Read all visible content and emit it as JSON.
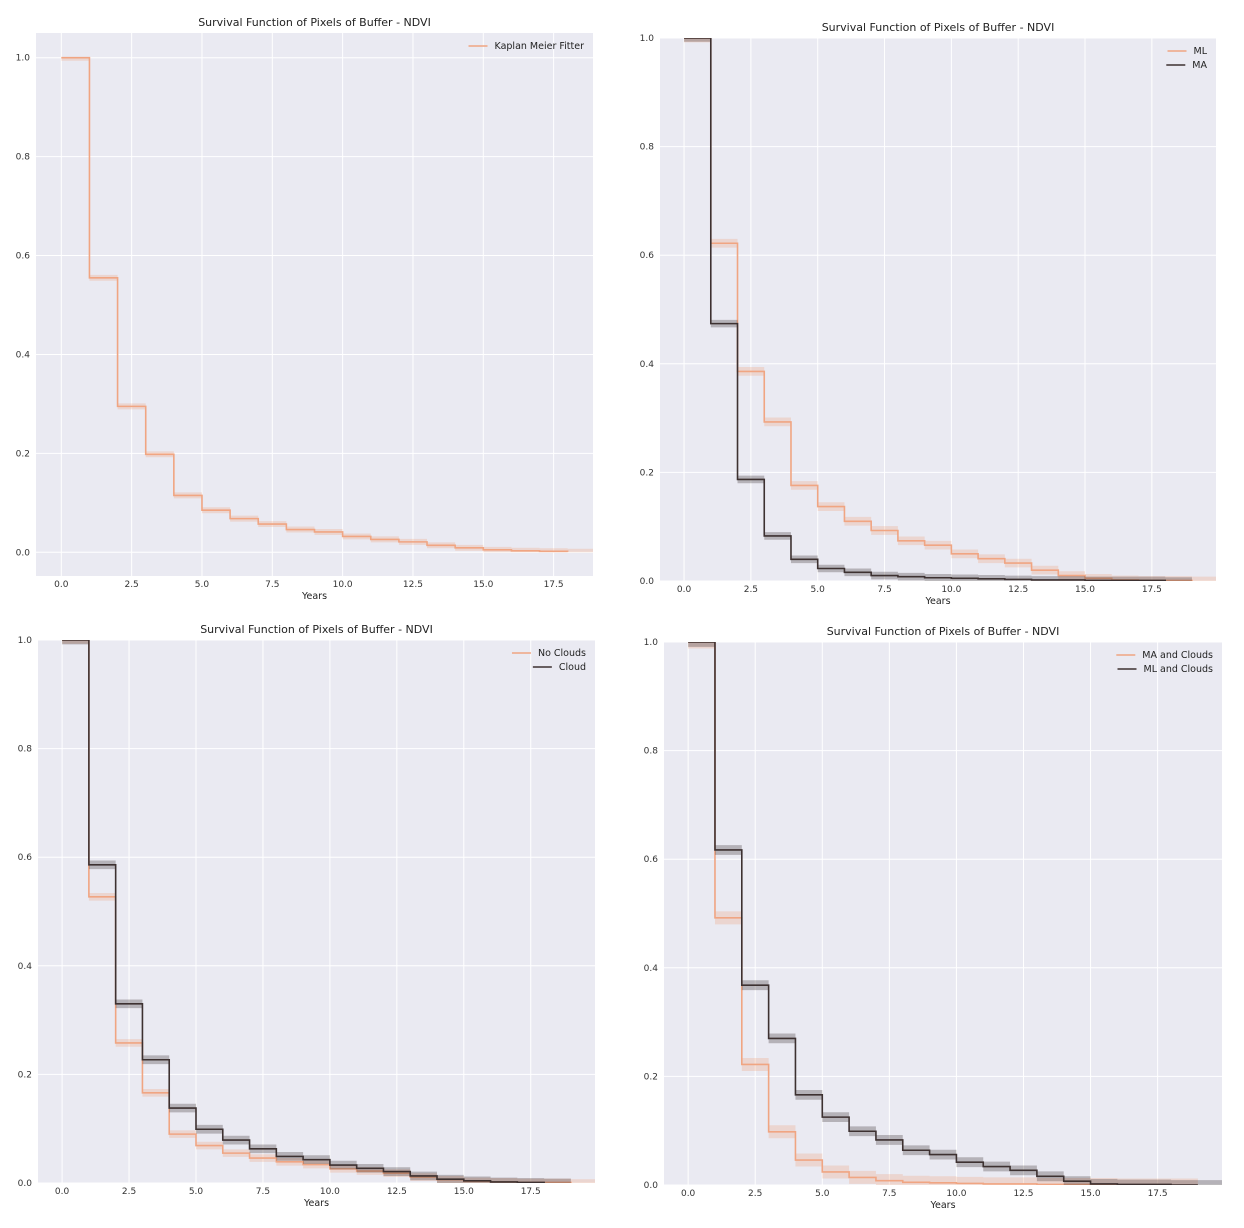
{
  "charts": [
    {
      "type": "line",
      "title": "Survival Function of Pixels of Buffer - NDVI",
      "xlabel": "Years",
      "ylabel": "",
      "xlim": [
        -0.9,
        18.9
      ],
      "ylim": [
        -0.048,
        1.05
      ],
      "xticks": [
        0.0,
        2.5,
        5.0,
        7.5,
        10.0,
        12.5,
        15.0,
        17.5
      ],
      "xtick_labels": [
        "0.0",
        "2.5",
        "5.0",
        "7.5",
        "10.0",
        "12.5",
        "15.0",
        "17.5"
      ],
      "yticks": [
        0.0,
        0.2,
        0.4,
        0.6,
        0.8,
        1.0
      ],
      "ytick_labels": [
        "0.0",
        "0.2",
        "0.4",
        "0.6",
        "0.8",
        "1.0"
      ],
      "grid": true,
      "legend_position": "top-right",
      "series": [
        {
          "name": "Kaplan Meier Fitter",
          "color": "#f0a582",
          "x": [
            0,
            1,
            2,
            3,
            4,
            5,
            6,
            7,
            8,
            9,
            10,
            11,
            12,
            13,
            14,
            15,
            16,
            17,
            18
          ],
          "y": [
            1.0,
            0.555,
            0.295,
            0.198,
            0.115,
            0.085,
            0.068,
            0.057,
            0.046,
            0.041,
            0.032,
            0.026,
            0.021,
            0.014,
            0.009,
            0.005,
            0.003,
            0.002,
            0.001
          ],
          "ci": 0.006
        }
      ]
    },
    {
      "type": "line",
      "title": "Survival Function of Pixels of Buffer - NDVI",
      "xlabel": "Years",
      "ylabel": "",
      "xlim": [
        -0.9,
        19.9
      ],
      "ylim": [
        0.0,
        1.0
      ],
      "xticks": [
        0.0,
        2.5,
        5.0,
        7.5,
        10.0,
        12.5,
        15.0,
        17.5
      ],
      "xtick_labels": [
        "0.0",
        "2.5",
        "5.0",
        "7.5",
        "10.0",
        "12.5",
        "15.0",
        "17.5"
      ],
      "yticks": [
        0.0,
        0.2,
        0.4,
        0.6,
        0.8,
        1.0
      ],
      "ytick_labels": [
        "0.0",
        "0.2",
        "0.4",
        "0.6",
        "0.8",
        "1.0"
      ],
      "grid": true,
      "legend_position": "top-right",
      "series": [
        {
          "name": "ML",
          "color": "#f0a582",
          "x": [
            0,
            1,
            2,
            3,
            4,
            5,
            6,
            7,
            8,
            9,
            10,
            11,
            12,
            13,
            14,
            15,
            16,
            17,
            18,
            19
          ],
          "y": [
            1.0,
            0.622,
            0.386,
            0.293,
            0.176,
            0.137,
            0.11,
            0.093,
            0.074,
            0.066,
            0.05,
            0.041,
            0.033,
            0.02,
            0.01,
            0.005,
            0.002,
            0.001,
            0.001,
            0.0
          ],
          "ci": 0.008
        },
        {
          "name": "MA",
          "color": "#3d3131",
          "x": [
            0,
            1,
            2,
            3,
            4,
            5,
            6,
            7,
            8,
            9,
            10,
            11,
            12,
            13,
            14,
            15,
            16,
            17,
            18
          ],
          "y": [
            1.0,
            0.474,
            0.187,
            0.083,
            0.04,
            0.023,
            0.016,
            0.01,
            0.008,
            0.006,
            0.005,
            0.004,
            0.003,
            0.002,
            0.002,
            0.001,
            0.001,
            0.001,
            0.0
          ],
          "ci": 0.007
        }
      ]
    },
    {
      "type": "line",
      "title": "Survival Function of Pixels of Buffer - NDVI",
      "xlabel": "Years",
      "ylabel": "",
      "xlim": [
        -0.9,
        19.9
      ],
      "ylim": [
        0.0,
        1.0
      ],
      "xticks": [
        0.0,
        2.5,
        5.0,
        7.5,
        10.0,
        12.5,
        15.0,
        17.5
      ],
      "xtick_labels": [
        "0.0",
        "2.5",
        "5.0",
        "7.5",
        "10.0",
        "12.5",
        "15.0",
        "17.5"
      ],
      "yticks": [
        0.0,
        0.2,
        0.4,
        0.6,
        0.8,
        1.0
      ],
      "ytick_labels": [
        "0.0",
        "0.2",
        "0.4",
        "0.6",
        "0.8",
        "1.0"
      ],
      "grid": true,
      "legend_position": "top-right",
      "series": [
        {
          "name": "No Clouds",
          "color": "#f0a582",
          "x": [
            0,
            1,
            2,
            3,
            4,
            5,
            6,
            7,
            8,
            9,
            10,
            11,
            12,
            13,
            14,
            15,
            16,
            17,
            18,
            19
          ],
          "y": [
            1.0,
            0.527,
            0.258,
            0.166,
            0.09,
            0.069,
            0.055,
            0.046,
            0.039,
            0.034,
            0.026,
            0.022,
            0.018,
            0.011,
            0.006,
            0.003,
            0.002,
            0.001,
            0.001,
            0.0
          ],
          "ci": 0.007
        },
        {
          "name": "Cloud",
          "color": "#3d3131",
          "x": [
            0,
            1,
            2,
            3,
            4,
            5,
            6,
            7,
            8,
            9,
            10,
            11,
            12,
            13,
            14,
            15,
            16,
            17,
            18
          ],
          "y": [
            1.0,
            0.586,
            0.33,
            0.227,
            0.138,
            0.099,
            0.079,
            0.063,
            0.049,
            0.043,
            0.033,
            0.027,
            0.021,
            0.013,
            0.007,
            0.004,
            0.002,
            0.001,
            0.0
          ],
          "ci": 0.008
        }
      ]
    },
    {
      "type": "line",
      "title": "Survival Function of Pixels of Buffer - NDVI",
      "xlabel": "Years",
      "ylabel": "",
      "xlim": [
        -0.9,
        19.9
      ],
      "ylim": [
        0.0,
        1.0
      ],
      "xticks": [
        0.0,
        2.5,
        5.0,
        7.5,
        10.0,
        12.5,
        15.0,
        17.5
      ],
      "xtick_labels": [
        "0.0",
        "2.5",
        "5.0",
        "7.5",
        "10.0",
        "12.5",
        "15.0",
        "17.5"
      ],
      "yticks": [
        0.0,
        0.2,
        0.4,
        0.6,
        0.8,
        1.0
      ],
      "ytick_labels": [
        "0.0",
        "0.2",
        "0.4",
        "0.6",
        "0.8",
        "1.0"
      ],
      "grid": true,
      "legend_position": "top-right",
      "series": [
        {
          "name": "MA and Clouds",
          "color": "#f0a582",
          "x": [
            0,
            1,
            2,
            3,
            4,
            5,
            6,
            7,
            8,
            9,
            10,
            11,
            12,
            13,
            14,
            15,
            16,
            17,
            18
          ],
          "y": [
            1.0,
            0.492,
            0.222,
            0.098,
            0.046,
            0.024,
            0.014,
            0.008,
            0.005,
            0.004,
            0.003,
            0.002,
            0.002,
            0.001,
            0.001,
            0.001,
            0.0,
            0.0,
            0.0
          ],
          "ci": 0.012
        },
        {
          "name": "ML and Clouds",
          "color": "#3d3131",
          "x": [
            0,
            1,
            2,
            3,
            4,
            5,
            6,
            7,
            8,
            9,
            10,
            11,
            12,
            13,
            14,
            15,
            16,
            17,
            18,
            19
          ],
          "y": [
            1.0,
            0.617,
            0.368,
            0.27,
            0.166,
            0.125,
            0.099,
            0.083,
            0.064,
            0.056,
            0.042,
            0.034,
            0.027,
            0.016,
            0.007,
            0.002,
            0.001,
            0.001,
            0.0,
            0.0
          ],
          "ci": 0.009
        }
      ]
    }
  ]
}
